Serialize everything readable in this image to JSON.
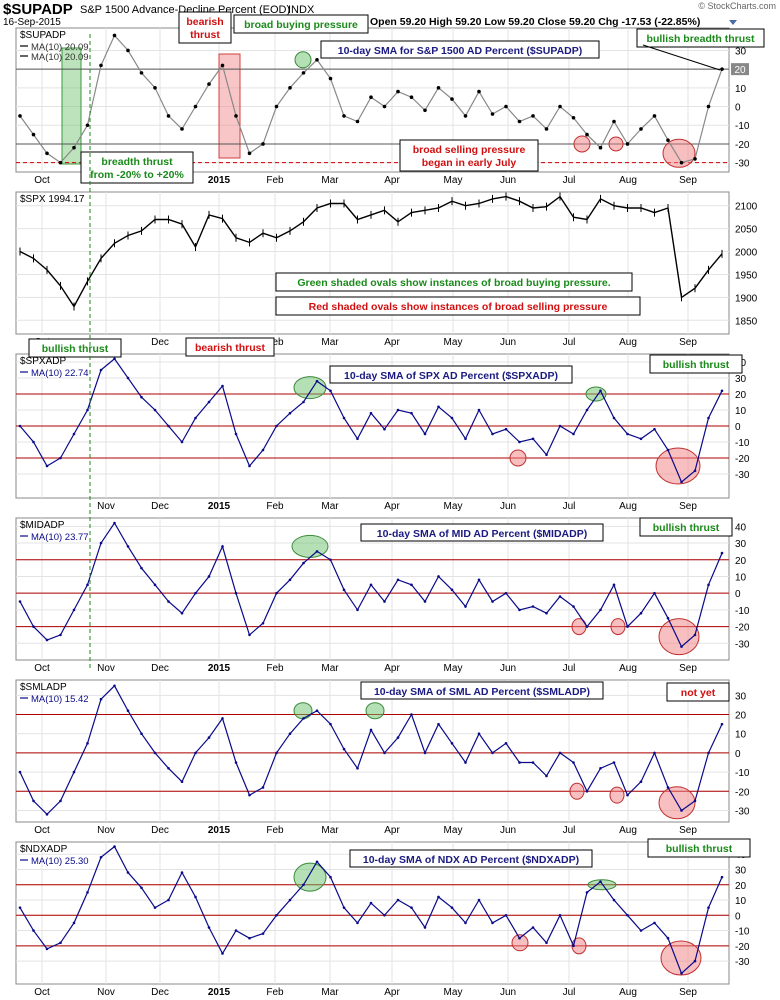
{
  "header": {
    "symbol": "$SUPADP",
    "description": "S&P 1500 Advance-Decline Percent (EOD)",
    "exchange": "INDX",
    "date": "16-Sep-2015",
    "quote": "Open 59.20   High 59.20   Low 59.20   Close 59.20   Chg -17.53 (-22.85%)",
    "watermark": "© StockCharts.com"
  },
  "month_labels": [
    "Oct",
    "Nov",
    "Dec",
    "2015",
    "Feb",
    "Mar",
    "Apr",
    "May",
    "Jun",
    "Jul",
    "Aug",
    "Sep"
  ],
  "chart_data": [
    {
      "id": "supadp",
      "type": "line",
      "title": "10-day SMA for S&P 1500 AD Percent ($SUPADP)",
      "symbol_label": "$SUPADP",
      "legend": [
        "MA(10) 20.09",
        "MA(10) 20.09"
      ],
      "value_badge": "20",
      "ylim": [
        -35,
        42
      ],
      "y_ticks": [
        30,
        20,
        10,
        0,
        -10,
        -20,
        -30
      ],
      "hlines": [
        20,
        -20
      ],
      "dashed_lines": [
        -30
      ],
      "x_labels": [
        "Oct",
        "2015",
        "Feb",
        "Mar",
        "Apr",
        "May",
        "Jun",
        "Jul",
        "Aug",
        "Sep"
      ],
      "x": [
        "2014-09-16",
        "2014-09-23",
        "2014-09-30",
        "2014-10-07",
        "2014-10-14",
        "2014-10-21",
        "2014-10-28",
        "2014-11-04",
        "2014-11-11",
        "2014-11-18",
        "2014-11-25",
        "2014-12-02",
        "2014-12-09",
        "2014-12-16",
        "2014-12-23",
        "2014-12-30",
        "2015-01-06",
        "2015-01-13",
        "2015-01-20",
        "2015-01-27",
        "2015-02-03",
        "2015-02-10",
        "2015-02-17",
        "2015-02-24",
        "2015-03-03",
        "2015-03-10",
        "2015-03-17",
        "2015-03-24",
        "2015-03-31",
        "2015-04-07",
        "2015-04-14",
        "2015-04-21",
        "2015-04-28",
        "2015-05-05",
        "2015-05-12",
        "2015-05-19",
        "2015-05-26",
        "2015-06-02",
        "2015-06-09",
        "2015-06-16",
        "2015-06-23",
        "2015-06-30",
        "2015-07-07",
        "2015-07-14",
        "2015-07-21",
        "2015-07-28",
        "2015-08-04",
        "2015-08-11",
        "2015-08-18",
        "2015-08-25",
        "2015-09-01",
        "2015-09-08",
        "2015-09-16"
      ],
      "values": [
        -5,
        -15,
        -25,
        -30,
        -22,
        -10,
        22,
        38,
        30,
        18,
        10,
        -5,
        -12,
        0,
        12,
        22,
        -5,
        -25,
        -20,
        0,
        10,
        18,
        25,
        15,
        -5,
        -8,
        5,
        0,
        8,
        5,
        -2,
        10,
        4,
        -5,
        8,
        -4,
        0,
        -8,
        -5,
        -12,
        0,
        -6,
        -15,
        -22,
        -8,
        -20,
        -12,
        -5,
        -18,
        -30,
        -28,
        0,
        20
      ],
      "annotations": [
        "bearish thrust",
        "broad buying pressure",
        "bullish breadth thrust",
        "broad selling pressure began in early July",
        "breadth thrust from -20% to +20%"
      ]
    },
    {
      "id": "spx",
      "type": "line",
      "symbol_label": "$SPX 1994.17",
      "ylim": [
        1820,
        2130
      ],
      "y_ticks": [
        2100,
        2050,
        2000,
        1950,
        1900,
        1850
      ],
      "x_labels": [
        "Oct",
        "Dec",
        "2015",
        "Feb",
        "Mar",
        "Apr",
        "May",
        "Jun",
        "Jul",
        "Aug",
        "Sep"
      ],
      "x": [
        "2014-09-16",
        "2014-09-23",
        "2014-09-30",
        "2014-10-07",
        "2014-10-14",
        "2014-10-21",
        "2014-10-28",
        "2014-11-04",
        "2014-11-11",
        "2014-11-18",
        "2014-11-25",
        "2014-12-02",
        "2014-12-09",
        "2014-12-16",
        "2014-12-23",
        "2014-12-30",
        "2015-01-06",
        "2015-01-13",
        "2015-01-20",
        "2015-01-27",
        "2015-02-03",
        "2015-02-10",
        "2015-02-17",
        "2015-02-24",
        "2015-03-03",
        "2015-03-10",
        "2015-03-17",
        "2015-03-24",
        "2015-03-31",
        "2015-04-07",
        "2015-04-14",
        "2015-04-21",
        "2015-04-28",
        "2015-05-05",
        "2015-05-12",
        "2015-05-19",
        "2015-05-26",
        "2015-06-02",
        "2015-06-09",
        "2015-06-16",
        "2015-06-23",
        "2015-06-30",
        "2015-07-07",
        "2015-07-14",
        "2015-07-21",
        "2015-07-28",
        "2015-08-04",
        "2015-08-11",
        "2015-08-18",
        "2015-08-25",
        "2015-09-01",
        "2015-09-08",
        "2015-09-16"
      ],
      "values": [
        2000,
        1985,
        1960,
        1925,
        1880,
        1935,
        1985,
        2018,
        2035,
        2045,
        2070,
        2070,
        2060,
        2010,
        2080,
        2072,
        2030,
        2020,
        2040,
        2030,
        2045,
        2065,
        2095,
        2105,
        2105,
        2070,
        2080,
        2090,
        2065,
        2085,
        2090,
        2095,
        2110,
        2100,
        2105,
        2115,
        2120,
        2110,
        2095,
        2098,
        2120,
        2075,
        2070,
        2115,
        2100,
        2095,
        2095,
        2085,
        2095,
        1900,
        1920,
        1960,
        1995
      ],
      "annotations": [
        "Green shaded ovals show instances of broad buying pressure.",
        "Red shaded ovals show instances of broad selling pressure"
      ]
    },
    {
      "id": "spxadp",
      "type": "line",
      "title": "10-day SMA of SPX AD Percent ($SPXADP)",
      "symbol_label": "$SPXADP",
      "legend": [
        "MA(10) 22.74"
      ],
      "ylim": [
        -45,
        45
      ],
      "y_ticks": [
        40,
        30,
        20,
        10,
        0,
        -10,
        -20,
        -30
      ],
      "hlines": [
        20,
        0,
        -20
      ],
      "x_labels": [
        "Nov",
        "Dec",
        "2015",
        "Feb",
        "Mar",
        "Apr",
        "May",
        "Jun",
        "Jul",
        "Aug",
        "Sep"
      ],
      "x": [
        "2014-09-16",
        "2014-09-23",
        "2014-09-30",
        "2014-10-07",
        "2014-10-14",
        "2014-10-21",
        "2014-10-28",
        "2014-11-04",
        "2014-11-11",
        "2014-11-18",
        "2014-11-25",
        "2014-12-02",
        "2014-12-09",
        "2014-12-16",
        "2014-12-23",
        "2014-12-30",
        "2015-01-06",
        "2015-01-13",
        "2015-01-20",
        "2015-01-27",
        "2015-02-03",
        "2015-02-10",
        "2015-02-17",
        "2015-02-24",
        "2015-03-03",
        "2015-03-10",
        "2015-03-17",
        "2015-03-24",
        "2015-03-31",
        "2015-04-07",
        "2015-04-14",
        "2015-04-21",
        "2015-04-28",
        "2015-05-05",
        "2015-05-12",
        "2015-05-19",
        "2015-05-26",
        "2015-06-02",
        "2015-06-09",
        "2015-06-16",
        "2015-06-23",
        "2015-06-30",
        "2015-07-07",
        "2015-07-14",
        "2015-07-21",
        "2015-07-28",
        "2015-08-04",
        "2015-08-11",
        "2015-08-18",
        "2015-08-25",
        "2015-09-01",
        "2015-09-08",
        "2015-09-16"
      ],
      "values": [
        0,
        -10,
        -25,
        -20,
        -5,
        10,
        35,
        42,
        30,
        18,
        10,
        0,
        -10,
        5,
        15,
        25,
        -5,
        -25,
        -15,
        0,
        8,
        15,
        28,
        22,
        5,
        -8,
        8,
        -2,
        10,
        8,
        -5,
        12,
        5,
        -8,
        10,
        -5,
        -2,
        -10,
        -8,
        -18,
        0,
        -5,
        10,
        22,
        5,
        -5,
        -8,
        -2,
        -15,
        -35,
        -28,
        5,
        22
      ],
      "annotations": [
        "bullish thrust",
        "bearish thrust",
        "bullish thrust"
      ]
    },
    {
      "id": "midadp",
      "type": "line",
      "title": "10-day SMA of MID AD Percent ($MIDADP)",
      "symbol_label": "$MIDADP",
      "legend": [
        "MA(10) 23.77"
      ],
      "ylim": [
        -40,
        45
      ],
      "y_ticks": [
        40,
        30,
        20,
        10,
        0,
        -10,
        -20,
        -30
      ],
      "hlines": [
        20,
        0,
        -20
      ],
      "x_labels": [
        "Oct",
        "Nov",
        "Dec",
        "2015",
        "Feb",
        "Mar",
        "Apr",
        "May",
        "Jun",
        "Jul",
        "Aug",
        "Sep"
      ],
      "x": [
        "2014-09-16",
        "2014-09-23",
        "2014-09-30",
        "2014-10-07",
        "2014-10-14",
        "2014-10-21",
        "2014-10-28",
        "2014-11-04",
        "2014-11-11",
        "2014-11-18",
        "2014-11-25",
        "2014-12-02",
        "2014-12-09",
        "2014-12-16",
        "2014-12-23",
        "2014-12-30",
        "2015-01-06",
        "2015-01-13",
        "2015-01-20",
        "2015-01-27",
        "2015-02-03",
        "2015-02-10",
        "2015-02-17",
        "2015-02-24",
        "2015-03-03",
        "2015-03-10",
        "2015-03-17",
        "2015-03-24",
        "2015-03-31",
        "2015-04-07",
        "2015-04-14",
        "2015-04-21",
        "2015-04-28",
        "2015-05-05",
        "2015-05-12",
        "2015-05-19",
        "2015-05-26",
        "2015-06-02",
        "2015-06-09",
        "2015-06-16",
        "2015-06-23",
        "2015-06-30",
        "2015-07-07",
        "2015-07-14",
        "2015-07-21",
        "2015-07-28",
        "2015-08-04",
        "2015-08-11",
        "2015-08-18",
        "2015-08-25",
        "2015-09-01",
        "2015-09-08",
        "2015-09-16"
      ],
      "values": [
        -5,
        -20,
        -28,
        -25,
        -10,
        5,
        30,
        42,
        28,
        15,
        5,
        -5,
        -12,
        0,
        10,
        28,
        0,
        -25,
        -18,
        0,
        8,
        18,
        25,
        20,
        2,
        -10,
        5,
        -5,
        8,
        5,
        -5,
        10,
        2,
        -8,
        8,
        -5,
        0,
        -10,
        -8,
        -12,
        -2,
        -8,
        -20,
        -10,
        5,
        -20,
        -12,
        0,
        -15,
        -32,
        -25,
        5,
        24
      ],
      "annotations": [
        "bullish thrust"
      ]
    },
    {
      "id": "smladp",
      "type": "line",
      "title": "10-day SMA of SML AD Percent ($SMLADP)",
      "symbol_label": "$SMLADP",
      "legend": [
        "MA(10) 15.42"
      ],
      "ylim": [
        -36,
        38
      ],
      "y_ticks": [
        30,
        20,
        10,
        0,
        -10,
        -20,
        -30
      ],
      "hlines": [
        20,
        0,
        -20
      ],
      "x_labels": [
        "Oct",
        "Nov",
        "Dec",
        "2015",
        "Feb",
        "Mar",
        "Apr",
        "May",
        "Jun",
        "Jul",
        "Aug",
        "Sep"
      ],
      "x": [
        "2014-09-16",
        "2014-09-23",
        "2014-09-30",
        "2014-10-07",
        "2014-10-14",
        "2014-10-21",
        "2014-10-28",
        "2014-11-04",
        "2014-11-11",
        "2014-11-18",
        "2014-11-25",
        "2014-12-02",
        "2014-12-09",
        "2014-12-16",
        "2014-12-23",
        "2014-12-30",
        "2015-01-06",
        "2015-01-13",
        "2015-01-20",
        "2015-01-27",
        "2015-02-03",
        "2015-02-10",
        "2015-02-17",
        "2015-02-24",
        "2015-03-03",
        "2015-03-10",
        "2015-03-17",
        "2015-03-24",
        "2015-03-31",
        "2015-04-07",
        "2015-04-14",
        "2015-04-21",
        "2015-04-28",
        "2015-05-05",
        "2015-05-12",
        "2015-05-19",
        "2015-05-26",
        "2015-06-02",
        "2015-06-09",
        "2015-06-16",
        "2015-06-23",
        "2015-06-30",
        "2015-07-07",
        "2015-07-14",
        "2015-07-21",
        "2015-07-28",
        "2015-08-04",
        "2015-08-11",
        "2015-08-18",
        "2015-08-25",
        "2015-09-01",
        "2015-09-08",
        "2015-09-16"
      ],
      "values": [
        -10,
        -25,
        -32,
        -25,
        -10,
        5,
        28,
        35,
        22,
        10,
        0,
        -8,
        -15,
        0,
        8,
        18,
        -5,
        -22,
        -18,
        0,
        10,
        18,
        22,
        15,
        2,
        -8,
        12,
        0,
        8,
        20,
        0,
        15,
        5,
        -5,
        10,
        0,
        5,
        -5,
        -5,
        -12,
        0,
        -5,
        -20,
        -8,
        -5,
        -22,
        -15,
        0,
        -18,
        -30,
        -25,
        0,
        15
      ],
      "annotations": [
        "not yet"
      ]
    },
    {
      "id": "ndxadp",
      "type": "line",
      "title": "10-day SMA of NDX AD Percent ($NDXADP)",
      "symbol_label": "$NDXADP",
      "legend": [
        "MA(10) 25.30"
      ],
      "ylim": [
        -45,
        48
      ],
      "y_ticks": [
        40,
        30,
        20,
        10,
        0,
        -10,
        -20,
        -30
      ],
      "hlines": [
        20,
        0,
        -20
      ],
      "x_labels": [
        "Oct",
        "Nov",
        "Dec",
        "2015",
        "Feb",
        "Mar",
        "Apr",
        "May",
        "Jun",
        "Jul",
        "Aug",
        "Sep"
      ],
      "x": [
        "2014-09-16",
        "2014-09-23",
        "2014-09-30",
        "2014-10-07",
        "2014-10-14",
        "2014-10-21",
        "2014-10-28",
        "2014-11-04",
        "2014-11-11",
        "2014-11-18",
        "2014-11-25",
        "2014-12-02",
        "2014-12-09",
        "2014-12-16",
        "2014-12-23",
        "2014-12-30",
        "2015-01-06",
        "2015-01-13",
        "2015-01-20",
        "2015-01-27",
        "2015-02-03",
        "2015-02-10",
        "2015-02-17",
        "2015-02-24",
        "2015-03-03",
        "2015-03-10",
        "2015-03-17",
        "2015-03-24",
        "2015-03-31",
        "2015-04-07",
        "2015-04-14",
        "2015-04-21",
        "2015-04-28",
        "2015-05-05",
        "2015-05-12",
        "2015-05-19",
        "2015-05-26",
        "2015-06-02",
        "2015-06-09",
        "2015-06-16",
        "2015-06-23",
        "2015-06-30",
        "2015-07-07",
        "2015-07-14",
        "2015-07-21",
        "2015-07-28",
        "2015-08-04",
        "2015-08-11",
        "2015-08-18",
        "2015-08-25",
        "2015-09-01",
        "2015-09-08",
        "2015-09-16"
      ],
      "values": [
        5,
        -10,
        -22,
        -18,
        -5,
        15,
        38,
        45,
        28,
        18,
        5,
        10,
        28,
        12,
        -8,
        -25,
        -10,
        -15,
        -12,
        0,
        10,
        20,
        35,
        25,
        5,
        -5,
        8,
        0,
        10,
        5,
        -8,
        12,
        5,
        -5,
        10,
        -5,
        0,
        -15,
        -8,
        -18,
        0,
        -20,
        15,
        22,
        10,
        0,
        -10,
        -5,
        -15,
        -38,
        -30,
        5,
        25
      ],
      "annotations": [
        "bullish thrust"
      ]
    }
  ]
}
